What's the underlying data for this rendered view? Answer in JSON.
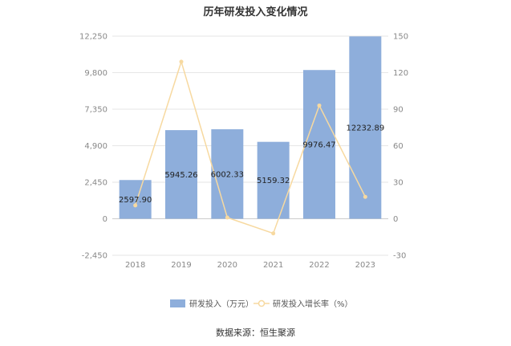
{
  "chart_data": {
    "type": "bar",
    "title": "历年研发投入变化情况",
    "categories": [
      "2018",
      "2019",
      "2020",
      "2021",
      "2022",
      "2023"
    ],
    "series": [
      {
        "name": "研发投入（万元）",
        "type": "bar",
        "axis": "left",
        "values": [
          2597.9,
          5945.26,
          6002.33,
          5159.32,
          9976.47,
          12232.89
        ],
        "labels": [
          "2597.90",
          "5945.26",
          "6002.33",
          "5159.32",
          "9976.47",
          "12232.89"
        ],
        "color": "#8eaedb"
      },
      {
        "name": "研发投入增长率（%）",
        "type": "line",
        "axis": "right",
        "values": [
          11,
          129,
          1,
          -12,
          93,
          18
        ],
        "color": "#f7d9a0"
      }
    ],
    "y_left": {
      "ticks": [
        "12,250",
        "9,800",
        "7,350",
        "4,900",
        "2,450",
        "0",
        "-2,450"
      ],
      "min": -2450,
      "max": 12250
    },
    "y_right": {
      "ticks": [
        "150",
        "120",
        "90",
        "60",
        "30",
        "0",
        "-30"
      ],
      "min": -30,
      "max": 150
    },
    "grid": true,
    "legend_position": "bottom"
  },
  "source": "数据来源：恒生聚源"
}
